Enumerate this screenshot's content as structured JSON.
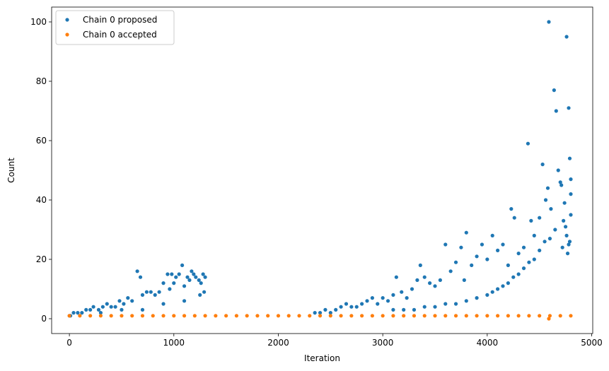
{
  "chart_data": {
    "type": "scatter",
    "title": "",
    "xlabel": "Iteration",
    "ylabel": "Count",
    "xlim": [
      -170,
      5010
    ],
    "ylim": [
      -5,
      105
    ],
    "xticks": [
      0,
      1000,
      2000,
      3000,
      4000,
      5000
    ],
    "yticks": [
      0,
      20,
      40,
      60,
      80,
      100
    ],
    "grid": false,
    "legend_position": "top-left",
    "series": [
      {
        "name": "Chain 0 proposed",
        "color": "#1f77b4",
        "points": [
          [
            0,
            1
          ],
          [
            10,
            1
          ],
          [
            40,
            2
          ],
          [
            80,
            2
          ],
          [
            120,
            2
          ],
          [
            160,
            3
          ],
          [
            200,
            3
          ],
          [
            230,
            4
          ],
          [
            280,
            3
          ],
          [
            320,
            4
          ],
          [
            360,
            5
          ],
          [
            400,
            4
          ],
          [
            440,
            4
          ],
          [
            480,
            6
          ],
          [
            520,
            5
          ],
          [
            560,
            7
          ],
          [
            600,
            6
          ],
          [
            650,
            16
          ],
          [
            680,
            14
          ],
          [
            700,
            8
          ],
          [
            740,
            9
          ],
          [
            780,
            9
          ],
          [
            820,
            8
          ],
          [
            860,
            9
          ],
          [
            900,
            12
          ],
          [
            940,
            15
          ],
          [
            960,
            10
          ],
          [
            980,
            15
          ],
          [
            1000,
            12
          ],
          [
            1020,
            14
          ],
          [
            1050,
            15
          ],
          [
            1080,
            18
          ],
          [
            1100,
            11
          ],
          [
            1130,
            14
          ],
          [
            1150,
            13
          ],
          [
            1170,
            16
          ],
          [
            1190,
            15
          ],
          [
            1210,
            14
          ],
          [
            1240,
            13
          ],
          [
            1260,
            12
          ],
          [
            1280,
            15
          ],
          [
            1300,
            14
          ],
          [
            300,
            2
          ],
          [
            500,
            3
          ],
          [
            700,
            3
          ],
          [
            900,
            5
          ],
          [
            1100,
            6
          ],
          [
            1250,
            8
          ],
          [
            1290,
            9
          ],
          [
            2350,
            2
          ],
          [
            2400,
            2
          ],
          [
            2450,
            3
          ],
          [
            2500,
            2
          ],
          [
            2550,
            3
          ],
          [
            2600,
            4
          ],
          [
            2650,
            5
          ],
          [
            2700,
            4
          ],
          [
            2750,
            4
          ],
          [
            2800,
            5
          ],
          [
            2850,
            6
          ],
          [
            2900,
            7
          ],
          [
            2950,
            5
          ],
          [
            3000,
            7
          ],
          [
            3050,
            6
          ],
          [
            3100,
            8
          ],
          [
            3130,
            14
          ],
          [
            3180,
            9
          ],
          [
            3230,
            7
          ],
          [
            3280,
            10
          ],
          [
            3330,
            13
          ],
          [
            3360,
            18
          ],
          [
            3400,
            14
          ],
          [
            3450,
            12
          ],
          [
            3500,
            11
          ],
          [
            3550,
            13
          ],
          [
            3600,
            25
          ],
          [
            3650,
            16
          ],
          [
            3700,
            19
          ],
          [
            3750,
            24
          ],
          [
            3780,
            13
          ],
          [
            3800,
            29
          ],
          [
            3850,
            18
          ],
          [
            3900,
            21
          ],
          [
            3950,
            25
          ],
          [
            4000,
            20
          ],
          [
            4050,
            28
          ],
          [
            4100,
            23
          ],
          [
            4150,
            25
          ],
          [
            4200,
            18
          ],
          [
            4230,
            37
          ],
          [
            4260,
            34
          ],
          [
            4300,
            22
          ],
          [
            4350,
            24
          ],
          [
            4390,
            59
          ],
          [
            4420,
            33
          ],
          [
            4450,
            28
          ],
          [
            4500,
            34
          ],
          [
            4530,
            52
          ],
          [
            4560,
            40
          ],
          [
            4580,
            44
          ],
          [
            4590,
            100
          ],
          [
            4610,
            37
          ],
          [
            4640,
            77
          ],
          [
            4660,
            70
          ],
          [
            4680,
            50
          ],
          [
            4700,
            46
          ],
          [
            4710,
            45
          ],
          [
            4730,
            33
          ],
          [
            4740,
            39
          ],
          [
            4760,
            95
          ],
          [
            4780,
            71
          ],
          [
            4790,
            54
          ],
          [
            4800,
            47
          ],
          [
            4800,
            42
          ],
          [
            4800,
            35
          ],
          [
            4790,
            26
          ],
          [
            4780,
            25
          ],
          [
            4770,
            22
          ],
          [
            4760,
            28
          ],
          [
            4750,
            31
          ],
          [
            4720,
            24
          ],
          [
            4650,
            30
          ],
          [
            4600,
            27
          ],
          [
            4550,
            26
          ],
          [
            4500,
            23
          ],
          [
            4450,
            20
          ],
          [
            4400,
            19
          ],
          [
            4350,
            17
          ],
          [
            4300,
            15
          ],
          [
            4250,
            14
          ],
          [
            4200,
            12
          ],
          [
            4150,
            11
          ],
          [
            4100,
            10
          ],
          [
            4050,
            9
          ],
          [
            4000,
            8
          ],
          [
            3900,
            7
          ],
          [
            3800,
            6
          ],
          [
            3700,
            5
          ],
          [
            3600,
            5
          ],
          [
            3500,
            4
          ],
          [
            3400,
            4
          ],
          [
            3300,
            3
          ],
          [
            3200,
            3
          ],
          [
            3100,
            3
          ]
        ]
      },
      {
        "name": "Chain 0 accepted",
        "color": "#ff7f0e",
        "points": [
          [
            0,
            1
          ],
          [
            100,
            1
          ],
          [
            200,
            1
          ],
          [
            300,
            1
          ],
          [
            400,
            1
          ],
          [
            500,
            1
          ],
          [
            600,
            1
          ],
          [
            700,
            1
          ],
          [
            800,
            1
          ],
          [
            900,
            1
          ],
          [
            1000,
            1
          ],
          [
            1100,
            1
          ],
          [
            1200,
            1
          ],
          [
            1300,
            1
          ],
          [
            1400,
            1
          ],
          [
            1500,
            1
          ],
          [
            1600,
            1
          ],
          [
            1700,
            1
          ],
          [
            1800,
            1
          ],
          [
            1900,
            1
          ],
          [
            2000,
            1
          ],
          [
            2100,
            1
          ],
          [
            2200,
            1
          ],
          [
            2300,
            1
          ],
          [
            2400,
            1
          ],
          [
            2500,
            1
          ],
          [
            2600,
            1
          ],
          [
            2700,
            1
          ],
          [
            2800,
            1
          ],
          [
            2900,
            1
          ],
          [
            3000,
            1
          ],
          [
            3100,
            1
          ],
          [
            3200,
            1
          ],
          [
            3300,
            1
          ],
          [
            3400,
            1
          ],
          [
            3500,
            1
          ],
          [
            3600,
            1
          ],
          [
            3700,
            1
          ],
          [
            3800,
            1
          ],
          [
            3900,
            1
          ],
          [
            4000,
            1
          ],
          [
            4100,
            1
          ],
          [
            4200,
            1
          ],
          [
            4300,
            1
          ],
          [
            4400,
            1
          ],
          [
            4500,
            1
          ],
          [
            4590,
            0
          ],
          [
            4600,
            1
          ],
          [
            4700,
            1
          ],
          [
            4800,
            1
          ]
        ]
      }
    ]
  }
}
